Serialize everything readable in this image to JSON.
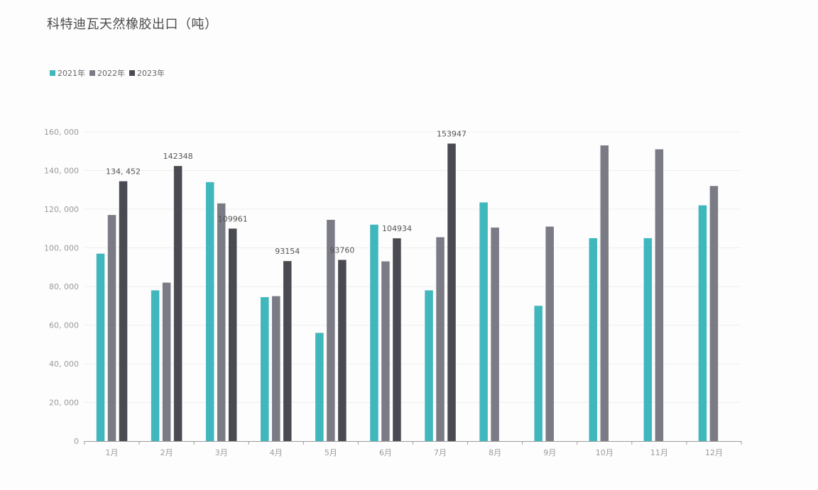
{
  "chart_data": {
    "type": "bar",
    "title": "科特迪瓦天然橡胶出口（吨）",
    "categories": [
      "1月",
      "2月",
      "3月",
      "4月",
      "5月",
      "6月",
      "7月",
      "8月",
      "9月",
      "10月",
      "11月",
      "12月"
    ],
    "series": [
      {
        "name": "2021年",
        "color": "#3fb7bd",
        "values": [
          97000,
          78000,
          134000,
          74500,
          56000,
          112000,
          78000,
          123500,
          70000,
          105000,
          105000,
          122000
        ]
      },
      {
        "name": "2022年",
        "color": "#7b7b86",
        "values": [
          117000,
          82000,
          123000,
          75000,
          114500,
          93000,
          105500,
          110500,
          111000,
          153000,
          151000,
          132000
        ]
      },
      {
        "name": "2023年",
        "color": "#4a4b52",
        "values": [
          134452,
          142348,
          109961,
          93154,
          93760,
          104934,
          153947,
          null,
          null,
          null,
          null,
          null
        ]
      }
    ],
    "data_labels": {
      "2023年": [
        "134, 452",
        "142348",
        "109961",
        "93154",
        "93760",
        "104934",
        "153947",
        "",
        "",
        "",
        "",
        ""
      ]
    },
    "ylim": [
      0,
      160000
    ],
    "yticks": [
      0,
      20000,
      40000,
      60000,
      80000,
      100000,
      120000,
      140000,
      160000
    ],
    "ytick_labels": [
      "0",
      "20, 000",
      "40, 000",
      "60, 000",
      "80, 000",
      "100, 000",
      "120, 000",
      "140, 000",
      "160, 000"
    ],
    "grid": true,
    "legend": "top-left",
    "xlabel": "",
    "ylabel": ""
  }
}
